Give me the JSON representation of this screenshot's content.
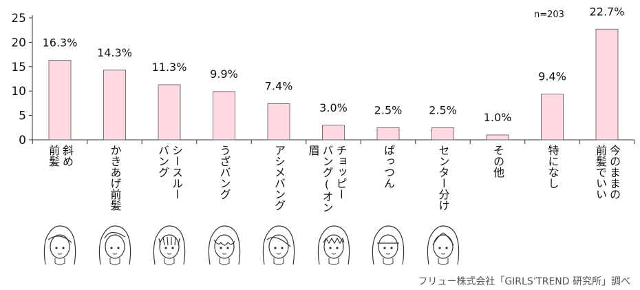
{
  "chart_data": {
    "type": "bar",
    "categories": [
      "斜め前髪",
      "かきあげ前髪",
      "シースルーバング",
      "うざバング",
      "アシメバング",
      "チョッピーバング(オン眉",
      "ぱっつん",
      "センター分け",
      "その他",
      "特になし",
      "今のままの前髪でいい"
    ],
    "category_lines": [
      [
        "斜め",
        "前髪"
      ],
      [
        "かきあげ前髪"
      ],
      [
        "シースルー",
        "バング"
      ],
      [
        "うざバング"
      ],
      [
        "アシメバング"
      ],
      [
        "チョッピー",
        "バング(オン眉"
      ],
      [
        "ぱっつん"
      ],
      [
        "センター分け"
      ],
      [
        "その他"
      ],
      [
        "特になし"
      ],
      [
        "今のままの",
        "前髪でいい"
      ]
    ],
    "values": [
      16.3,
      14.3,
      11.3,
      9.9,
      7.4,
      3.0,
      2.5,
      2.5,
      1.0,
      9.4,
      22.7
    ],
    "value_labels": [
      "16.3%",
      "14.3%",
      "11.3%",
      "9.9%",
      "7.4%",
      "3.0%",
      "2.5%",
      "2.5%",
      "1.0%",
      "9.4%",
      "22.7%"
    ],
    "yticks": [
      "0",
      "5",
      "10",
      "15",
      "20",
      "25"
    ],
    "ylim": [
      0,
      25
    ],
    "annotation": "n=203",
    "bar_color": "#ffd9e1",
    "bar_stroke": "#555555",
    "grid": false,
    "legend": "none"
  },
  "source": "フリュー株式会社「GIRLS’TREND 研究所」調べ",
  "face_icons": [
    "face-side-swept-bangs-icon",
    "face-swept-back-bangs-icon",
    "face-see-through-bangs-icon",
    "face-wispy-bangs-icon",
    "face-asymmetric-bangs-icon",
    "face-choppy-bangs-icon",
    "face-blunt-bangs-icon",
    "face-center-part-icon"
  ]
}
